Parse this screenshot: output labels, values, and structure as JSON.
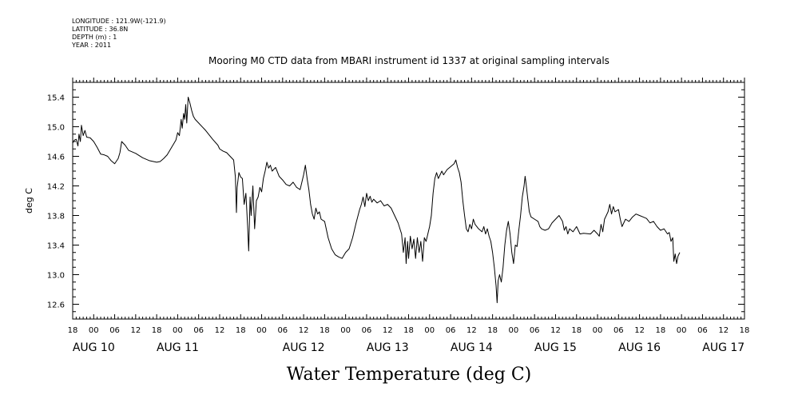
{
  "metadata": {
    "longitude": "LONGITUDE : 121.9W(-121.9)",
    "latitude": "LATITUDE : 36.8N",
    "depth": "DEPTH (m) : 1",
    "year": "YEAR : 2011"
  },
  "chart_data": {
    "type": "line",
    "title": "Mooring M0 CTD data from MBARI instrument id 1337 at original sampling intervals",
    "xlabel": "Water Temperature (deg C)",
    "ylabel": "deg C",
    "x_unit": "hours from AUG 10 00:00",
    "xlim": [
      -6,
      186
    ],
    "ylim": [
      12.4,
      15.6
    ],
    "yticks": [
      12.6,
      13.0,
      13.4,
      13.8,
      14.2,
      14.6,
      15.0,
      15.4
    ],
    "hour_ticks": [
      {
        "x": -6,
        "label": "18"
      },
      {
        "x": 0,
        "label": "00"
      },
      {
        "x": 6,
        "label": "06"
      },
      {
        "x": 12,
        "label": "12"
      },
      {
        "x": 18,
        "label": "18"
      },
      {
        "x": 24,
        "label": "00"
      },
      {
        "x": 30,
        "label": "06"
      },
      {
        "x": 36,
        "label": "12"
      },
      {
        "x": 42,
        "label": "18"
      },
      {
        "x": 48,
        "label": "00"
      },
      {
        "x": 54,
        "label": "06"
      },
      {
        "x": 60,
        "label": "12"
      },
      {
        "x": 66,
        "label": "18"
      },
      {
        "x": 72,
        "label": "00"
      },
      {
        "x": 78,
        "label": "06"
      },
      {
        "x": 84,
        "label": "12"
      },
      {
        "x": 90,
        "label": "18"
      },
      {
        "x": 96,
        "label": "00"
      },
      {
        "x": 102,
        "label": "06"
      },
      {
        "x": 108,
        "label": "12"
      },
      {
        "x": 114,
        "label": "18"
      },
      {
        "x": 120,
        "label": "00"
      },
      {
        "x": 126,
        "label": "06"
      },
      {
        "x": 132,
        "label": "12"
      },
      {
        "x": 138,
        "label": "18"
      },
      {
        "x": 144,
        "label": "00"
      },
      {
        "x": 150,
        "label": "06"
      },
      {
        "x": 156,
        "label": "12"
      },
      {
        "x": 162,
        "label": "18"
      },
      {
        "x": 168,
        "label": "00"
      },
      {
        "x": 174,
        "label": "06"
      },
      {
        "x": 180,
        "label": "12"
      },
      {
        "x": 186,
        "label": "18"
      }
    ],
    "day_labels": [
      {
        "x": 0,
        "label": "AUG 10"
      },
      {
        "x": 24,
        "label": "AUG 11"
      },
      {
        "x": 60,
        "label": "AUG 12"
      },
      {
        "x": 84,
        "label": "AUG 13"
      },
      {
        "x": 108,
        "label": "AUG 14"
      },
      {
        "x": 132,
        "label": "AUG 15"
      },
      {
        "x": 156,
        "label": "AUG 16"
      },
      {
        "x": 180,
        "label": "AUG 17"
      }
    ],
    "series": [
      {
        "color": "#000000",
        "points": [
          [
            -6,
            14.78
          ],
          [
            -5.5,
            14.82
          ],
          [
            -5,
            14.83
          ],
          [
            -4.5,
            14.74
          ],
          [
            -4.2,
            14.9
          ],
          [
            -3.8,
            14.8
          ],
          [
            -3.5,
            15.02
          ],
          [
            -3,
            14.88
          ],
          [
            -2.5,
            14.95
          ],
          [
            -2,
            14.86
          ],
          [
            -1,
            14.85
          ],
          [
            0,
            14.8
          ],
          [
            1,
            14.72
          ],
          [
            2,
            14.63
          ],
          [
            3,
            14.62
          ],
          [
            4,
            14.6
          ],
          [
            5,
            14.54
          ],
          [
            6,
            14.5
          ],
          [
            7,
            14.57
          ],
          [
            7.5,
            14.65
          ],
          [
            8,
            14.8
          ],
          [
            9,
            14.75
          ],
          [
            10,
            14.68
          ],
          [
            12,
            14.64
          ],
          [
            14,
            14.58
          ],
          [
            16,
            14.54
          ],
          [
            18,
            14.52
          ],
          [
            19,
            14.53
          ],
          [
            20,
            14.57
          ],
          [
            21,
            14.62
          ],
          [
            22,
            14.7
          ],
          [
            23,
            14.78
          ],
          [
            23.5,
            14.82
          ],
          [
            24,
            14.92
          ],
          [
            24.5,
            14.88
          ],
          [
            25,
            15.1
          ],
          [
            25.3,
            14.98
          ],
          [
            25.7,
            15.18
          ],
          [
            26,
            15.1
          ],
          [
            26.3,
            15.3
          ],
          [
            26.6,
            15.05
          ],
          [
            27,
            15.4
          ],
          [
            27.5,
            15.32
          ],
          [
            28,
            15.22
          ],
          [
            28.5,
            15.14
          ],
          [
            29,
            15.1
          ],
          [
            30,
            15.05
          ],
          [
            32,
            14.95
          ],
          [
            34,
            14.83
          ],
          [
            35.5,
            14.75
          ],
          [
            36,
            14.7
          ],
          [
            37,
            14.67
          ],
          [
            38,
            14.65
          ],
          [
            39,
            14.6
          ],
          [
            40,
            14.55
          ],
          [
            40.5,
            14.32
          ],
          [
            40.8,
            13.84
          ],
          [
            41,
            14.18
          ],
          [
            41.5,
            14.38
          ],
          [
            42,
            14.32
          ],
          [
            42.5,
            14.3
          ],
          [
            43,
            13.95
          ],
          [
            43.5,
            14.1
          ],
          [
            44,
            13.65
          ],
          [
            44.3,
            13.32
          ],
          [
            44.7,
            14.05
          ],
          [
            45,
            13.8
          ],
          [
            45.5,
            14.2
          ],
          [
            46,
            13.62
          ],
          [
            46.5,
            14.0
          ],
          [
            47,
            14.05
          ],
          [
            47.5,
            14.18
          ],
          [
            48,
            14.12
          ],
          [
            48.5,
            14.3
          ],
          [
            49,
            14.4
          ],
          [
            49.5,
            14.52
          ],
          [
            50,
            14.44
          ],
          [
            50.5,
            14.48
          ],
          [
            51,
            14.4
          ],
          [
            52,
            14.45
          ],
          [
            53,
            14.33
          ],
          [
            54,
            14.28
          ],
          [
            55,
            14.22
          ],
          [
            56,
            14.2
          ],
          [
            57,
            14.25
          ],
          [
            58,
            14.18
          ],
          [
            59,
            14.15
          ],
          [
            60,
            14.35
          ],
          [
            60.5,
            14.48
          ],
          [
            61,
            14.3
          ],
          [
            61.5,
            14.15
          ],
          [
            62,
            13.95
          ],
          [
            62.5,
            13.82
          ],
          [
            63,
            13.75
          ],
          [
            63.5,
            13.9
          ],
          [
            64,
            13.82
          ],
          [
            64.5,
            13.85
          ],
          [
            65,
            13.75
          ],
          [
            66,
            13.72
          ],
          [
            67,
            13.5
          ],
          [
            68,
            13.35
          ],
          [
            69,
            13.27
          ],
          [
            70,
            13.24
          ],
          [
            71,
            13.22
          ],
          [
            72,
            13.3
          ],
          [
            73,
            13.35
          ],
          [
            74,
            13.5
          ],
          [
            75,
            13.7
          ],
          [
            76,
            13.88
          ],
          [
            76.5,
            13.95
          ],
          [
            77,
            14.05
          ],
          [
            77.5,
            13.92
          ],
          [
            78,
            14.1
          ],
          [
            78.5,
            14.0
          ],
          [
            79,
            14.06
          ],
          [
            79.5,
            13.98
          ],
          [
            80,
            14.02
          ],
          [
            81,
            13.97
          ],
          [
            82,
            14.0
          ],
          [
            83,
            13.93
          ],
          [
            84,
            13.95
          ],
          [
            85,
            13.9
          ],
          [
            86,
            13.8
          ],
          [
            87,
            13.7
          ],
          [
            88,
            13.55
          ],
          [
            88.5,
            13.3
          ],
          [
            89,
            13.5
          ],
          [
            89.3,
            13.15
          ],
          [
            89.7,
            13.45
          ],
          [
            90,
            13.22
          ],
          [
            90.5,
            13.52
          ],
          [
            91,
            13.35
          ],
          [
            91.5,
            13.48
          ],
          [
            92,
            13.22
          ],
          [
            92.5,
            13.5
          ],
          [
            93,
            13.3
          ],
          [
            93.5,
            13.45
          ],
          [
            94,
            13.18
          ],
          [
            94.5,
            13.5
          ],
          [
            95,
            13.45
          ],
          [
            96,
            13.65
          ],
          [
            96.5,
            13.8
          ],
          [
            97,
            14.1
          ],
          [
            97.5,
            14.3
          ],
          [
            98,
            14.38
          ],
          [
            98.5,
            14.3
          ],
          [
            99,
            14.35
          ],
          [
            99.5,
            14.4
          ],
          [
            100,
            14.35
          ],
          [
            101,
            14.42
          ],
          [
            102,
            14.46
          ],
          [
            103,
            14.5
          ],
          [
            103.5,
            14.55
          ],
          [
            104,
            14.45
          ],
          [
            104.5,
            14.38
          ],
          [
            105,
            14.25
          ],
          [
            105.5,
            14.0
          ],
          [
            106,
            13.8
          ],
          [
            106.5,
            13.62
          ],
          [
            107,
            13.58
          ],
          [
            107.5,
            13.68
          ],
          [
            108,
            13.62
          ],
          [
            108.5,
            13.75
          ],
          [
            109,
            13.68
          ],
          [
            110,
            13.62
          ],
          [
            111,
            13.58
          ],
          [
            111.5,
            13.65
          ],
          [
            112,
            13.55
          ],
          [
            112.5,
            13.62
          ],
          [
            113,
            13.52
          ],
          [
            113.5,
            13.45
          ],
          [
            114,
            13.3
          ],
          [
            114.5,
            13.1
          ],
          [
            115,
            12.85
          ],
          [
            115.3,
            12.62
          ],
          [
            115.6,
            12.92
          ],
          [
            116,
            13.0
          ],
          [
            116.5,
            12.9
          ],
          [
            117,
            13.1
          ],
          [
            117.5,
            13.4
          ],
          [
            118,
            13.6
          ],
          [
            118.5,
            13.72
          ],
          [
            119,
            13.55
          ],
          [
            119.5,
            13.3
          ],
          [
            120,
            13.15
          ],
          [
            120.5,
            13.4
          ],
          [
            121,
            13.38
          ],
          [
            121.5,
            13.6
          ],
          [
            122,
            13.8
          ],
          [
            122.5,
            14.05
          ],
          [
            123,
            14.2
          ],
          [
            123.3,
            14.33
          ],
          [
            123.6,
            14.22
          ],
          [
            124,
            14.05
          ],
          [
            124.5,
            13.85
          ],
          [
            125,
            13.78
          ],
          [
            126,
            13.75
          ],
          [
            127,
            13.72
          ],
          [
            127.5,
            13.65
          ],
          [
            128,
            13.62
          ],
          [
            129,
            13.6
          ],
          [
            130,
            13.62
          ],
          [
            131,
            13.7
          ],
          [
            132,
            13.75
          ],
          [
            133,
            13.8
          ],
          [
            134,
            13.72
          ],
          [
            134.5,
            13.6
          ],
          [
            135,
            13.65
          ],
          [
            135.5,
            13.55
          ],
          [
            136,
            13.62
          ],
          [
            137,
            13.58
          ],
          [
            138,
            13.65
          ],
          [
            139,
            13.55
          ],
          [
            140,
            13.56
          ],
          [
            142,
            13.55
          ],
          [
            143,
            13.6
          ],
          [
            144,
            13.55
          ],
          [
            144.5,
            13.52
          ],
          [
            145,
            13.68
          ],
          [
            145.5,
            13.58
          ],
          [
            146,
            13.75
          ],
          [
            146.5,
            13.8
          ],
          [
            147,
            13.85
          ],
          [
            147.5,
            13.95
          ],
          [
            148,
            13.82
          ],
          [
            148.5,
            13.92
          ],
          [
            149,
            13.85
          ],
          [
            150,
            13.88
          ],
          [
            150.5,
            13.75
          ],
          [
            151,
            13.65
          ],
          [
            152,
            13.75
          ],
          [
            153,
            13.72
          ],
          [
            154,
            13.78
          ],
          [
            155,
            13.82
          ],
          [
            156,
            13.8
          ],
          [
            157,
            13.78
          ],
          [
            158,
            13.76
          ],
          [
            159,
            13.7
          ],
          [
            160,
            13.72
          ],
          [
            161,
            13.65
          ],
          [
            162,
            13.6
          ],
          [
            163,
            13.62
          ],
          [
            164,
            13.55
          ],
          [
            164.5,
            13.57
          ],
          [
            165,
            13.45
          ],
          [
            165.5,
            13.5
          ],
          [
            165.8,
            13.18
          ],
          [
            166.2,
            13.28
          ],
          [
            166.6,
            13.15
          ],
          [
            167,
            13.25
          ],
          [
            167.5,
            13.3
          ]
        ]
      }
    ]
  }
}
